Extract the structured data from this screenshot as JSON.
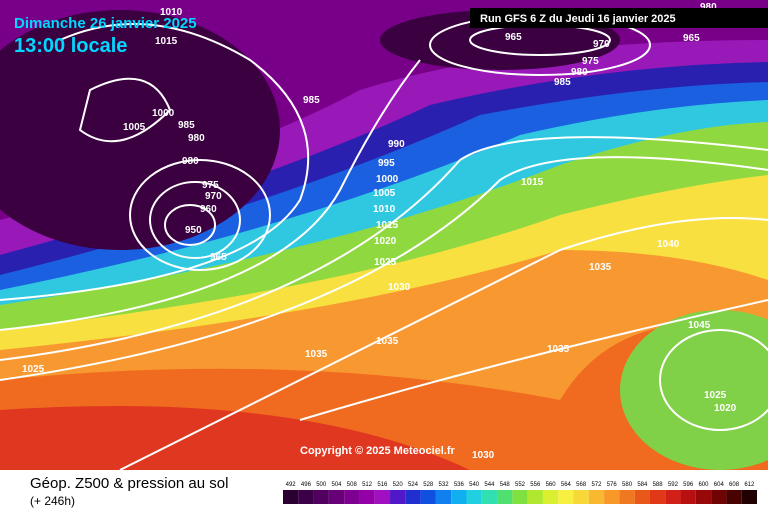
{
  "header": {
    "title": "Dimanche 26 janvier 2025",
    "time": "13:00 locale",
    "run": "Run GFS 6 Z du Jeudi 16 janvier 2025"
  },
  "copyright": "Copyright © 2025 Meteociel.fr",
  "footer": {
    "title": "Géop. Z500 & pression au sol",
    "lead": "(+ 246h)"
  },
  "isobar_labels": [
    1010,
    1015,
    1005,
    1000,
    985,
    980,
    980,
    975,
    970,
    960,
    950,
    965,
    985,
    990,
    995,
    1000,
    1005,
    1010,
    1015,
    1020,
    1025,
    1030,
    1035,
    1035,
    1035,
    1025,
    1040,
    1035,
    1045,
    1025,
    1020,
    1015,
    965,
    970,
    975,
    980,
    985,
    965,
    980,
    1030
  ],
  "colorbar": {
    "labels": [
      492,
      496,
      500,
      504,
      508,
      512,
      516,
      520,
      524,
      528,
      532,
      536,
      540,
      544,
      548,
      552,
      556,
      560,
      564,
      568,
      572,
      576,
      580,
      584,
      588,
      592,
      596,
      600,
      604,
      608,
      612
    ],
    "colors": [
      "#2a0030",
      "#3c0048",
      "#520060",
      "#680078",
      "#7e0090",
      "#9400a8",
      "#a010c0",
      "#5018c8",
      "#2030d0",
      "#1050e0",
      "#1080f0",
      "#10b0f0",
      "#20d0e0",
      "#30e0b0",
      "#50e070",
      "#80e040",
      "#b0e830",
      "#d8f030",
      "#f8f040",
      "#f8d838",
      "#f8b830",
      "#f89828",
      "#f07820",
      "#e85818",
      "#e03818",
      "#d02018",
      "#b81010",
      "#980808",
      "#700404",
      "#480202",
      "#200000"
    ]
  }
}
